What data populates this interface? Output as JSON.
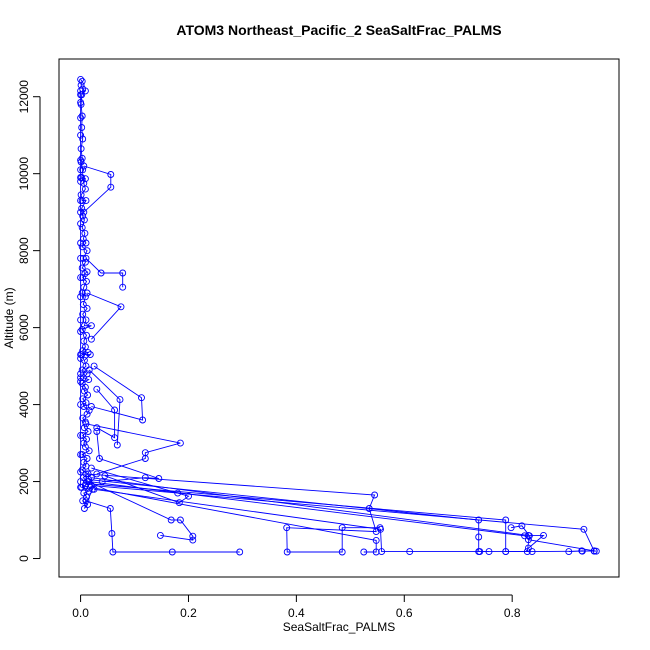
{
  "chart_data": {
    "type": "line",
    "title": "ATOM3 Northeast_Pacific_2 SeaSaltFrac_PALMS",
    "xlabel": "SeaSaltFrac_PALMS",
    "ylabel": "Altitude (m)",
    "xlim": [
      -0.04,
      0.998
    ],
    "ylim": [
      -480,
      12980
    ],
    "xticks": [
      0.0,
      0.2,
      0.4,
      0.6,
      0.8
    ],
    "xtick_labels": [
      "0.0",
      "0.2",
      "0.4",
      "0.6",
      "0.8"
    ],
    "yticks": [
      0,
      2000,
      4000,
      6000,
      8000,
      10000,
      12000
    ],
    "ytick_labels": [
      "0",
      "2000",
      "4000",
      "6000",
      "8000",
      "10000",
      "12000"
    ],
    "grid": false,
    "legend": false,
    "markers": "open-circle",
    "color": "#0000ff",
    "series": [
      {
        "values": [
          [
            0.0,
            12450
          ],
          [
            0.003,
            12400
          ],
          [
            0.001,
            12300
          ],
          [
            0.004,
            12200
          ],
          [
            0.009,
            12150
          ],
          [
            0.002,
            12050
          ],
          [
            0.001,
            11800
          ],
          [
            0.003,
            11500
          ],
          [
            0.002,
            11200
          ],
          [
            0.004,
            10900
          ],
          [
            0.001,
            10650
          ],
          [
            0.003,
            10400
          ],
          [
            0.001,
            10300
          ],
          [
            0.004,
            10100
          ],
          [
            0.002,
            9900
          ],
          [
            0.009,
            9870
          ],
          [
            0.006,
            9750
          ],
          [
            0.009,
            9600
          ],
          [
            0.001,
            9450
          ],
          [
            0.003,
            9300
          ],
          [
            0.01,
            9300
          ],
          [
            0.002,
            9100
          ],
          [
            0.004,
            8900
          ],
          [
            0.007,
            8800
          ],
          [
            0.003,
            8600
          ],
          [
            0.008,
            8450
          ],
          [
            0.005,
            8300
          ],
          [
            0.01,
            8200
          ],
          [
            0.003,
            8100
          ],
          [
            0.012,
            8000
          ],
          [
            0.005,
            7800
          ],
          [
            0.009,
            7700
          ],
          [
            0.003,
            7550
          ],
          [
            0.012,
            7450
          ],
          [
            0.008,
            7400
          ],
          [
            0.004,
            7300
          ],
          [
            0.011,
            7200
          ],
          [
            0.006,
            7050
          ],
          [
            0.003,
            6900
          ],
          [
            0.009,
            6800
          ],
          [
            0.005,
            6600
          ],
          [
            0.012,
            6500
          ],
          [
            0.004,
            6350
          ],
          [
            0.01,
            6200
          ],
          [
            0.007,
            6050
          ],
          [
            0.02,
            6050
          ],
          [
            0.003,
            5950
          ],
          [
            0.011,
            5800
          ],
          [
            0.006,
            5650
          ],
          [
            0.009,
            5500
          ],
          [
            0.004,
            5400
          ],
          [
            0.014,
            5350
          ],
          [
            0.002,
            5300
          ],
          [
            0.018,
            5300
          ],
          [
            0.007,
            5150
          ],
          [
            0.01,
            5000
          ],
          [
            0.003,
            4900
          ],
          [
            0.012,
            4800
          ],
          [
            0.005,
            4700
          ],
          [
            0.015,
            4650
          ],
          [
            0.003,
            4550
          ],
          [
            0.009,
            4450
          ],
          [
            0.007,
            4350
          ],
          [
            0.013,
            4250
          ],
          [
            0.004,
            4150
          ],
          [
            0.01,
            4050
          ],
          [
            0.006,
            3950
          ],
          [
            0.016,
            3850
          ],
          [
            0.012,
            3750
          ],
          [
            0.004,
            3650
          ],
          [
            0.009,
            3550
          ],
          [
            0.007,
            3400
          ],
          [
            0.014,
            3300
          ],
          [
            0.004,
            3200
          ],
          [
            0.011,
            3100
          ],
          [
            0.006,
            3000
          ],
          [
            0.009,
            2900
          ],
          [
            0.016,
            2800
          ],
          [
            0.003,
            2700
          ],
          [
            0.012,
            2600
          ],
          [
            0.006,
            2500
          ],
          [
            0.01,
            2400
          ],
          [
            0.003,
            2300
          ],
          [
            0.014,
            2200
          ],
          [
            0.005,
            2100
          ],
          [
            0.012,
            2000
          ],
          [
            0.009,
            1900
          ],
          [
            0.002,
            1850
          ],
          [
            0.015,
            1750
          ],
          [
            0.006,
            1700
          ],
          [
            0.011,
            1600
          ],
          [
            0.004,
            1500
          ],
          [
            0.013,
            1400
          ],
          [
            0.007,
            1300
          ],
          [
            0.022,
            1800
          ]
        ]
      },
      {
        "values": [
          [
            0.0,
            12150
          ],
          [
            0.0,
            12050
          ],
          [
            0.0,
            11850
          ],
          [
            0.0,
            11450
          ],
          [
            0.0,
            11000
          ],
          [
            0.0,
            10350
          ],
          [
            0.0,
            10100
          ],
          [
            0.0,
            9900
          ],
          [
            0.0,
            9800
          ],
          [
            0.0,
            9300
          ],
          [
            0.0,
            9000
          ],
          [
            0.0,
            8700
          ],
          [
            0.0,
            8200
          ],
          [
            0.0,
            7800
          ],
          [
            0.0,
            7300
          ],
          [
            0.0,
            6800
          ],
          [
            0.0,
            6200
          ],
          [
            0.0,
            5900
          ],
          [
            0.0,
            5300
          ],
          [
            0.0,
            5200
          ],
          [
            0.0,
            4800
          ],
          [
            0.0,
            4700
          ],
          [
            0.0,
            4600
          ],
          [
            0.0,
            4000
          ],
          [
            0.0,
            3200
          ],
          [
            0.0,
            2700
          ],
          [
            0.0,
            2250
          ],
          [
            0.0,
            2000
          ],
          [
            0.0,
            1850
          ]
        ]
      },
      {
        "values": [
          [
            0.006,
            10200
          ],
          [
            0.056,
            9980
          ],
          [
            0.056,
            9650
          ],
          [
            0.006,
            9000
          ]
        ]
      },
      {
        "values": [
          [
            0.01,
            7800
          ],
          [
            0.038,
            7420
          ],
          [
            0.078,
            7420
          ],
          [
            0.078,
            7050
          ]
        ]
      },
      {
        "values": [
          [
            0.012,
            6900
          ],
          [
            0.075,
            6540
          ],
          [
            0.02,
            5700
          ]
        ]
      },
      {
        "values": [
          [
            0.025,
            5000
          ],
          [
            0.113,
            4180
          ],
          [
            0.115,
            3600
          ],
          [
            0.02,
            3950
          ]
        ]
      },
      {
        "values": [
          [
            0.016,
            4900
          ],
          [
            0.073,
            4130
          ],
          [
            0.068,
            2950
          ]
        ]
      },
      {
        "values": [
          [
            0.03,
            4400
          ],
          [
            0.063,
            3860
          ],
          [
            0.063,
            3140
          ],
          [
            0.03,
            3400
          ]
        ]
      },
      {
        "values": [
          [
            0.01,
            3500
          ],
          [
            0.185,
            3000
          ],
          [
            0.12,
            2750
          ],
          [
            0.12,
            2600
          ],
          [
            0.03,
            2200
          ]
        ]
      },
      {
        "values": [
          [
            0.03,
            3300
          ],
          [
            0.035,
            2600
          ],
          [
            0.145,
            2080
          ],
          [
            0.12,
            2100
          ],
          [
            0.04,
            2000
          ]
        ]
      },
      {
        "values": [
          [
            0.02,
            2350
          ],
          [
            0.18,
            1700
          ],
          [
            0.2,
            1620
          ],
          [
            0.183,
            1450
          ],
          [
            0.045,
            2150
          ]
        ]
      },
      {
        "values": [
          [
            0.015,
            2000
          ],
          [
            0.168,
            1000
          ],
          [
            0.185,
            1000
          ],
          [
            0.208,
            580
          ],
          [
            0.208,
            480
          ],
          [
            0.148,
            600
          ]
        ]
      },
      {
        "values": [
          [
            0.01,
            1500
          ],
          [
            0.055,
            1300
          ],
          [
            0.058,
            650
          ],
          [
            0.06,
            170
          ],
          [
            0.17,
            170
          ],
          [
            0.295,
            170
          ]
        ]
      },
      {
        "values": [
          [
            0.01,
            2200
          ],
          [
            0.545,
            1650
          ],
          [
            0.535,
            1300
          ],
          [
            0.548,
            700
          ],
          [
            0.382,
            800
          ],
          [
            0.383,
            170
          ],
          [
            0.485,
            170
          ],
          [
            0.485,
            800
          ],
          [
            0.555,
            800
          ]
        ]
      },
      {
        "values": [
          [
            0.015,
            2050
          ],
          [
            0.738,
            1000
          ],
          [
            0.738,
            560
          ],
          [
            0.738,
            180
          ],
          [
            0.757,
            180
          ]
        ]
      },
      {
        "values": [
          [
            0.01,
            1950
          ],
          [
            0.788,
            1000
          ],
          [
            0.788,
            180
          ],
          [
            0.828,
            180
          ],
          [
            0.832,
            590
          ],
          [
            0.818,
            850
          ],
          [
            0.798,
            800
          ]
        ]
      },
      {
        "values": [
          [
            0.02,
            1900
          ],
          [
            0.933,
            760
          ],
          [
            0.952,
            190
          ],
          [
            0.929,
            200
          ],
          [
            0.905,
            180
          ]
        ]
      },
      {
        "values": [
          [
            0.02,
            2100
          ],
          [
            0.83,
            600
          ],
          [
            0.858,
            600
          ],
          [
            0.83,
            270
          ]
        ]
      },
      {
        "values": [
          [
            0.018,
            1850
          ],
          [
            0.548,
            470
          ],
          [
            0.548,
            170
          ],
          [
            0.525,
            170
          ]
        ]
      },
      {
        "values": [
          [
            0.025,
            1800
          ],
          [
            0.556,
            760
          ],
          [
            0.558,
            180
          ],
          [
            0.61,
            180
          ],
          [
            0.74,
            180
          ],
          [
            0.788,
            180
          ],
          [
            0.837,
            180
          ],
          [
            0.93,
            190
          ],
          [
            0.952,
            200
          ]
        ]
      },
      {
        "values": [
          [
            0.015,
            2000
          ],
          [
            0.823,
            590
          ],
          [
            0.83,
            490
          ],
          [
            0.956,
            190
          ]
        ]
      }
    ]
  }
}
